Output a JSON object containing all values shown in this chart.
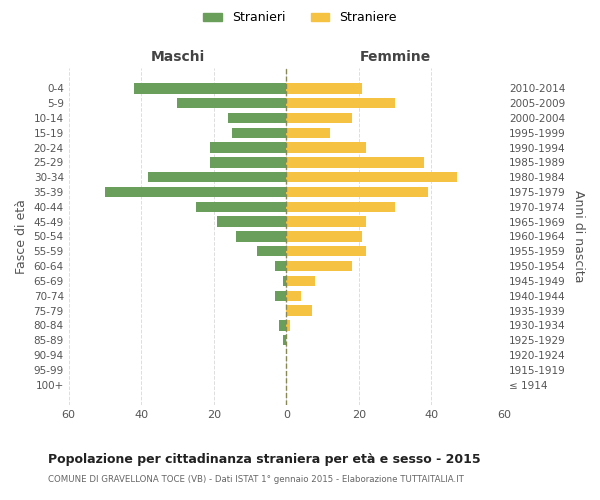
{
  "age_groups": [
    "100+",
    "95-99",
    "90-94",
    "85-89",
    "80-84",
    "75-79",
    "70-74",
    "65-69",
    "60-64",
    "55-59",
    "50-54",
    "45-49",
    "40-44",
    "35-39",
    "30-34",
    "25-29",
    "20-24",
    "15-19",
    "10-14",
    "5-9",
    "0-4"
  ],
  "birth_years": [
    "≤ 1914",
    "1915-1919",
    "1920-1924",
    "1925-1929",
    "1930-1934",
    "1935-1939",
    "1940-1944",
    "1945-1949",
    "1950-1954",
    "1955-1959",
    "1960-1964",
    "1965-1969",
    "1970-1974",
    "1975-1979",
    "1980-1984",
    "1985-1989",
    "1990-1994",
    "1995-1999",
    "2000-2004",
    "2005-2009",
    "2010-2014"
  ],
  "maschi": [
    0,
    0,
    0,
    1,
    2,
    0,
    3,
    1,
    3,
    8,
    14,
    19,
    25,
    50,
    38,
    21,
    21,
    15,
    16,
    30,
    42
  ],
  "femmine": [
    0,
    0,
    0,
    0,
    1,
    7,
    4,
    8,
    18,
    22,
    21,
    22,
    30,
    39,
    47,
    38,
    22,
    12,
    18,
    30,
    21
  ],
  "maschi_color": "#6a9e5b",
  "femmine_color": "#f5c242",
  "title": "Popolazione per cittadinanza straniera per età e sesso - 2015",
  "subtitle": "COMUNE DI GRAVELLONA TOCE (VB) - Dati ISTAT 1° gennaio 2015 - Elaborazione TUTTAITALIA.IT",
  "xlabel_left": "Maschi",
  "xlabel_right": "Femmine",
  "ylabel_left": "Fasce di età",
  "ylabel_right": "Anni di nascita",
  "legend_stranieri": "Stranieri",
  "legend_straniere": "Straniere",
  "xlim": 60,
  "background_color": "#ffffff",
  "grid_color": "#dddddd"
}
